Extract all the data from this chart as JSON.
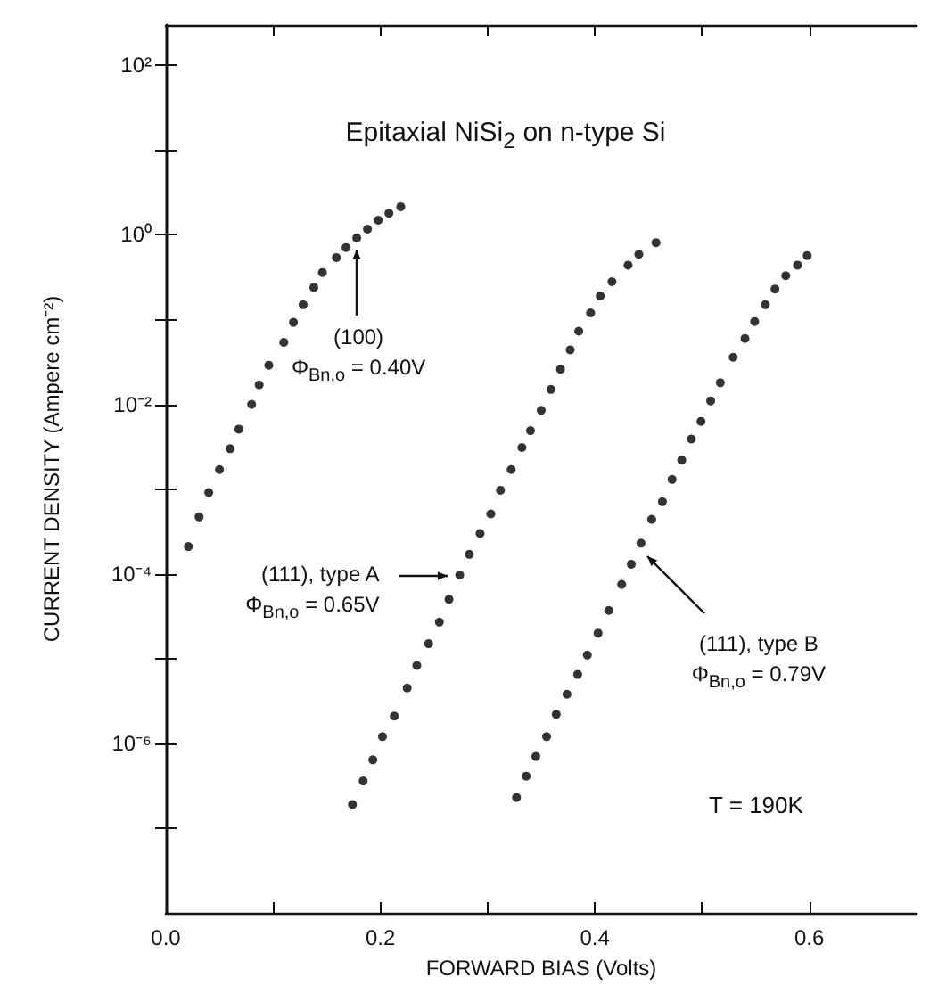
{
  "chart_data": {
    "type": "scatter",
    "title": "Epitaxial NiSi$_{2}$ on n-type Si",
    "xlabel": "FORWARD BIAS (Volts)",
    "ylabel": "CURRENT DENSITY (Ampere cm⁻²)",
    "log": "y",
    "grid": false,
    "marker": "circle",
    "xlim": [
      0,
      0.7
    ],
    "xticks": [
      {
        "value": 0,
        "label": "0.0"
      },
      {
        "value": 0.1,
        "label": null
      },
      0.2,
      {
        "value": 0.3,
        "label": null
      },
      0.4,
      {
        "value": 0.5,
        "label": null
      },
      0.6
    ],
    "ylim": [
      1e-08,
      300
    ],
    "yticks": [
      {
        "value": 1e-07,
        "label": null
      },
      {
        "value": 1e-06,
        "label": "10⁻⁶"
      },
      {
        "value": 1e-05,
        "label": null
      },
      {
        "value": 0.0001,
        "label": "10⁻⁴"
      },
      {
        "value": 0.001,
        "label": null
      },
      {
        "value": 0.01,
        "label": "10⁻²"
      },
      {
        "value": 0.1,
        "label": null
      },
      {
        "value": 1,
        "label": "10⁰"
      },
      {
        "value": 10,
        "label": null
      },
      {
        "value": 100,
        "label": "10²"
      }
    ],
    "series": [
      {
        "color": "#000000",
        "x": [
          0.021,
          0.031,
          0.04,
          0.05,
          0.06,
          0.068,
          0.08,
          0.087,
          0.096,
          0.11,
          0.119,
          0.128,
          0.138,
          0.146,
          0.159,
          0.168,
          0.178,
          0.188,
          0.198,
          0.208,
          0.219
        ],
        "values": [
          0.00021,
          0.00047,
          0.00091,
          0.0017,
          0.003,
          0.0051,
          0.01,
          0.017,
          0.029,
          0.054,
          0.093,
          0.15,
          0.24,
          0.36,
          0.54,
          0.71,
          0.92,
          1.17,
          1.49,
          1.8,
          2.15
        ]
      },
      {
        "color": "#000000",
        "x": [
          0.174,
          0.184,
          0.193,
          0.202,
          0.213,
          0.225,
          0.234,
          0.245,
          0.255,
          0.264,
          0.274,
          0.283,
          0.293,
          0.303,
          0.312,
          0.322,
          0.332,
          0.34,
          0.35,
          0.359,
          0.368,
          0.377,
          0.385,
          0.396,
          0.405,
          0.416,
          0.431,
          0.441,
          0.457
        ],
        "values": [
          1.9e-07,
          3.6e-07,
          6.4e-07,
          1.2e-06,
          2.1e-06,
          4.5e-06,
          8.3e-06,
          1.5e-05,
          2.7e-05,
          5e-05,
          9.7e-05,
          0.00017,
          0.0003,
          0.00051,
          0.00097,
          0.0017,
          0.0031,
          0.0049,
          0.0085,
          0.015,
          0.026,
          0.044,
          0.073,
          0.12,
          0.19,
          0.28,
          0.44,
          0.59,
          0.81
        ]
      },
      {
        "color": "#000000",
        "x": [
          0.327,
          0.336,
          0.345,
          0.355,
          0.364,
          0.374,
          0.384,
          0.393,
          0.403,
          0.413,
          0.425,
          0.434,
          0.443,
          0.453,
          0.463,
          0.472,
          0.481,
          0.49,
          0.499,
          0.508,
          0.517,
          0.529,
          0.54,
          0.549,
          0.559,
          0.568,
          0.578,
          0.589,
          0.598
        ],
        "values": [
          2.3e-07,
          4.1e-07,
          7e-07,
          1.2e-06,
          2.2e-06,
          3.8e-06,
          6.5e-06,
          1.1e-05,
          2e-05,
          3.7e-05,
          7.5e-05,
          0.00013,
          0.00023,
          0.00044,
          0.00071,
          0.0013,
          0.0022,
          0.0039,
          0.0063,
          0.011,
          0.018,
          0.036,
          0.06,
          0.095,
          0.15,
          0.23,
          0.33,
          0.44,
          0.57
        ]
      }
    ],
    "annotations": [
      {
        "text": "(100)\nΦ$_{Bn,o}$ = 0.40V",
        "x": 0.178,
        "y": 0.92
      },
      {
        "text": "(111), type A\nΦ$_{Bn,o}$ = 0.65V",
        "x": 0.274,
        "y": 9.7e-05
      },
      {
        "text": "(111), type B\nΦ$_{Bn,o}$ = 0.79V",
        "x": 0.443,
        "y": 0.00023
      },
      "T = 190K"
    ]
  }
}
